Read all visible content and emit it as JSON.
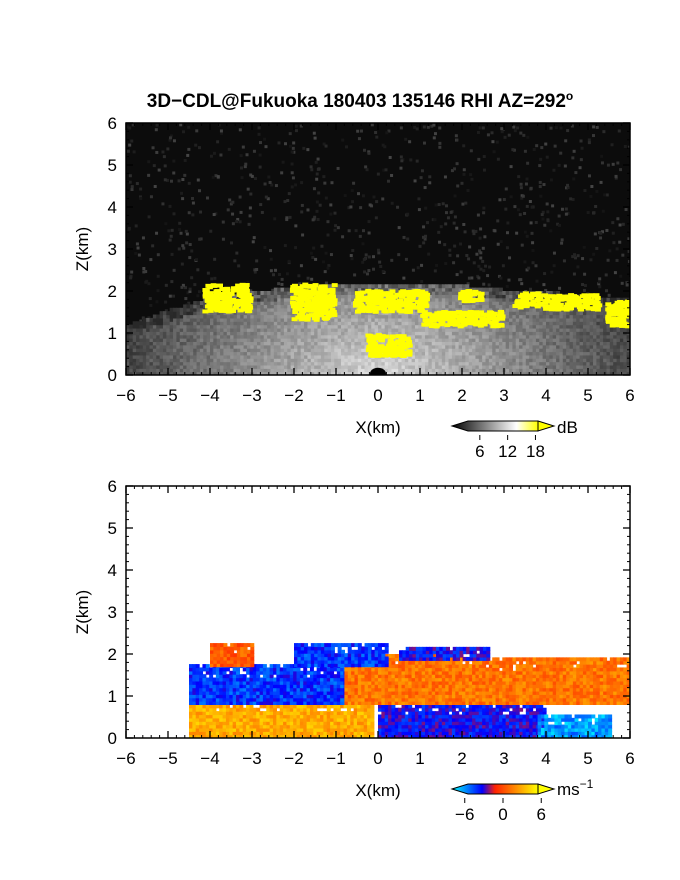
{
  "title": "3D−CDL@Fukuoka 180403 135146 RHI AZ=292",
  "title_degree": "o",
  "chart_data": [
    {
      "type": "heatmap",
      "name_ref": "intensity",
      "xlabel": "X(km)",
      "ylabel": "Z(km)",
      "xlim": [
        -6,
        6
      ],
      "ylim": [
        0,
        6
      ],
      "x_ticks": [
        "−6",
        "−5",
        "−4",
        "−3",
        "−2",
        "−1",
        "0",
        "1",
        "2",
        "3",
        "4",
        "5",
        "6"
      ],
      "y_ticks": [
        "0",
        "1",
        "2",
        "3",
        "4",
        "5",
        "6"
      ],
      "colorbar": {
        "unit": "dB",
        "ticks": [
          "6",
          "12",
          "18"
        ],
        "range": [
          0,
          22
        ],
        "colors": [
          "#000000",
          "#ffffff",
          "#ffff00"
        ]
      },
      "top_profile": [
        [
          -6,
          1.15
        ],
        [
          -5,
          1.5
        ],
        [
          -4.2,
          1.75
        ],
        [
          -3.5,
          1.9
        ],
        [
          -2.5,
          2.0
        ],
        [
          -1.5,
          2.1
        ],
        [
          0,
          2.15
        ],
        [
          1,
          2.1
        ],
        [
          2,
          2.1
        ],
        [
          3,
          2.0
        ],
        [
          4,
          1.95
        ],
        [
          5,
          1.85
        ],
        [
          6,
          1.8
        ]
      ],
      "cloud_segments": [
        {
          "x": [
            -4.2,
            -3.1
          ],
          "z": [
            1.55,
            2.2
          ]
        },
        {
          "x": [
            -2.1,
            -1.1
          ],
          "z": [
            1.35,
            2.2
          ]
        },
        {
          "x": [
            -0.6,
            1.1
          ],
          "z": [
            1.55,
            2.05
          ]
        },
        {
          "x": [
            1.0,
            2.9
          ],
          "z": [
            1.2,
            1.55
          ]
        },
        {
          "x": [
            -0.3,
            0.7
          ],
          "z": [
            0.5,
            1.0
          ]
        },
        {
          "x": [
            1.9,
            2.4
          ],
          "z": [
            1.8,
            2.05
          ]
        },
        {
          "x": [
            3.2,
            3.8
          ],
          "z": [
            1.65,
            2.0
          ]
        },
        {
          "x": [
            3.9,
            5.2
          ],
          "z": [
            1.6,
            1.95
          ]
        },
        {
          "x": [
            5.4,
            6.0
          ],
          "z": [
            1.2,
            1.8
          ]
        }
      ]
    },
    {
      "type": "heatmap",
      "name_ref": "doppler velocity",
      "xlabel": "X(km)",
      "ylabel": "Z(km)",
      "xlim": [
        -6,
        6
      ],
      "ylim": [
        0,
        6
      ],
      "x_ticks": [
        "−6",
        "−5",
        "−4",
        "−3",
        "−2",
        "−1",
        "0",
        "1",
        "2",
        "3",
        "4",
        "5",
        "6"
      ],
      "y_ticks": [
        "0",
        "1",
        "2",
        "3",
        "4",
        "5",
        "6"
      ],
      "colorbar": {
        "unit": "ms",
        "unit_exp": "−1",
        "ticks": [
          "−6",
          "0",
          "6"
        ],
        "range": [
          -8,
          8
        ],
        "colors": [
          "#00ffff",
          "#0000ff",
          "#ff2200",
          "#ffff00"
        ]
      },
      "regions": [
        {
          "x": [
            -4.5,
            -0.1
          ],
          "z": [
            0,
            0.9
          ],
          "value": 5
        },
        {
          "x": [
            0,
            4.0
          ],
          "z": [
            0,
            0.85
          ],
          "value": -3
        },
        {
          "x": [
            3.8,
            5.5
          ],
          "z": [
            0,
            0.5
          ],
          "value": -6
        },
        {
          "x": [
            -4.5,
            -0.8
          ],
          "z": [
            0.8,
            1.7
          ],
          "value": -4
        },
        {
          "x": [
            -0.8,
            2.0
          ],
          "z": [
            0.8,
            2.0
          ],
          "value": 3
        },
        {
          "x": [
            2.0,
            6.0
          ],
          "z": [
            0.8,
            1.85
          ],
          "value": 3
        },
        {
          "x": [
            -4.0,
            -3.0
          ],
          "z": [
            1.7,
            2.25
          ],
          "value": 2
        },
        {
          "x": [
            -2.0,
            0.2
          ],
          "z": [
            1.7,
            2.2
          ],
          "value": -4
        },
        {
          "x": [
            0.5,
            2.6
          ],
          "z": [
            1.85,
            2.1
          ],
          "value": -3
        }
      ]
    }
  ]
}
